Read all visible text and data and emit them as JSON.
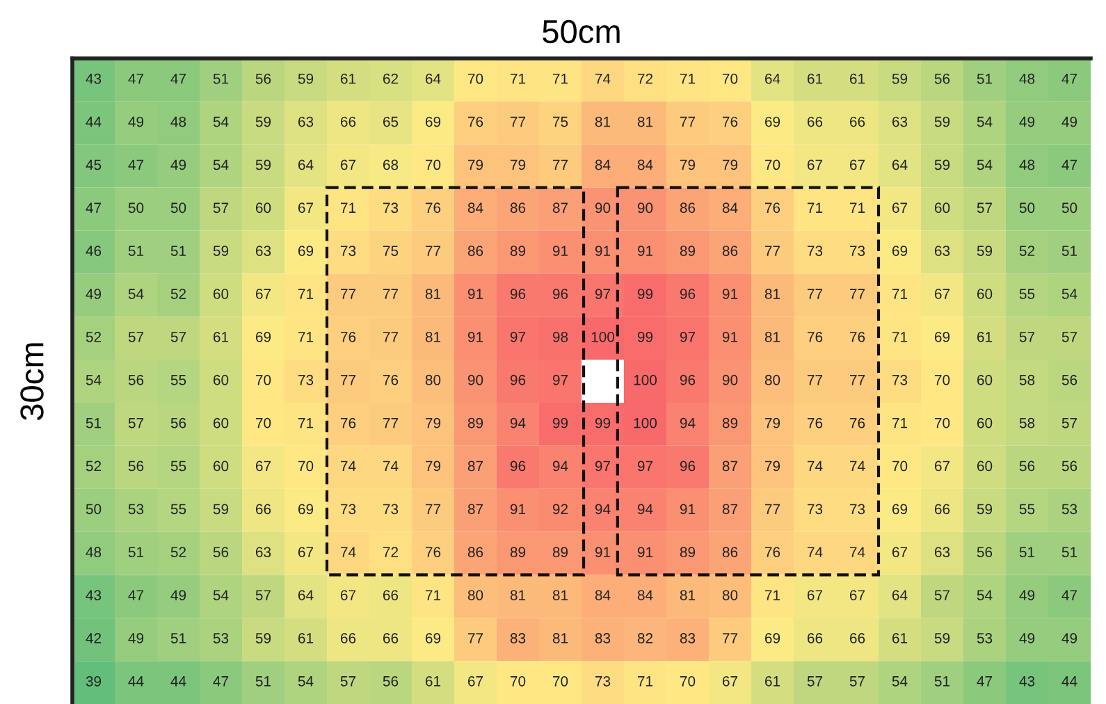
{
  "chart_data": {
    "type": "heatmap",
    "title": "50cm",
    "ylabel": "30cm",
    "data_labels": true,
    "categories": [
      null,
      null,
      null,
      null,
      null,
      null,
      null,
      null,
      null,
      null,
      null,
      null,
      null,
      null,
      null,
      null,
      null,
      null,
      null,
      null,
      null,
      null,
      null,
      null
    ],
    "y_categories": [
      null,
      null,
      null,
      null,
      null,
      null,
      null,
      null,
      null,
      null,
      null,
      null,
      null,
      null,
      null
    ],
    "cells": [
      [
        43,
        47,
        47,
        51,
        56,
        59,
        61,
        62,
        64,
        70,
        71,
        71,
        74,
        72,
        71,
        70,
        64,
        61,
        61,
        59,
        56,
        51,
        48,
        47
      ],
      [
        44,
        49,
        48,
        54,
        59,
        63,
        66,
        65,
        69,
        76,
        77,
        75,
        81,
        81,
        77,
        76,
        69,
        66,
        66,
        63,
        59,
        54,
        49,
        49
      ],
      [
        45,
        47,
        49,
        54,
        59,
        64,
        67,
        68,
        70,
        79,
        79,
        77,
        84,
        84,
        79,
        79,
        70,
        67,
        67,
        64,
        59,
        54,
        48,
        47
      ],
      [
        47,
        50,
        50,
        57,
        60,
        67,
        71,
        73,
        76,
        84,
        86,
        87,
        90,
        90,
        86,
        84,
        76,
        71,
        71,
        67,
        60,
        57,
        50,
        50
      ],
      [
        46,
        51,
        51,
        59,
        63,
        69,
        73,
        75,
        77,
        86,
        89,
        91,
        91,
        91,
        89,
        86,
        77,
        73,
        73,
        69,
        63,
        59,
        52,
        51
      ],
      [
        49,
        54,
        52,
        60,
        67,
        71,
        77,
        77,
        81,
        91,
        96,
        96,
        97,
        99,
        96,
        91,
        81,
        77,
        77,
        71,
        67,
        60,
        55,
        54
      ],
      [
        52,
        57,
        57,
        61,
        69,
        71,
        76,
        77,
        81,
        91,
        97,
        98,
        100,
        99,
        97,
        91,
        81,
        76,
        76,
        71,
        69,
        61,
        57,
        57
      ],
      [
        54,
        56,
        55,
        60,
        70,
        73,
        77,
        76,
        80,
        90,
        96,
        97,
        null,
        100,
        96,
        90,
        80,
        77,
        77,
        73,
        70,
        60,
        58,
        56
      ],
      [
        51,
        57,
        56,
        60,
        70,
        71,
        76,
        77,
        79,
        89,
        94,
        99,
        99,
        100,
        94,
        89,
        79,
        76,
        76,
        71,
        70,
        60,
        58,
        57
      ],
      [
        52,
        56,
        55,
        60,
        67,
        70,
        74,
        74,
        79,
        87,
        96,
        94,
        97,
        97,
        96,
        87,
        79,
        74,
        74,
        70,
        67,
        60,
        56,
        56
      ],
      [
        50,
        53,
        55,
        59,
        66,
        69,
        73,
        73,
        77,
        87,
        91,
        92,
        94,
        94,
        91,
        87,
        77,
        73,
        73,
        69,
        66,
        59,
        55,
        53
      ],
      [
        48,
        51,
        52,
        56,
        63,
        67,
        74,
        72,
        76,
        86,
        89,
        89,
        91,
        91,
        89,
        86,
        76,
        74,
        74,
        67,
        63,
        56,
        51,
        51
      ],
      [
        43,
        47,
        49,
        54,
        57,
        64,
        67,
        66,
        71,
        80,
        81,
        81,
        84,
        84,
        81,
        80,
        71,
        67,
        67,
        64,
        57,
        54,
        49,
        47
      ],
      [
        42,
        49,
        51,
        53,
        59,
        61,
        66,
        66,
        69,
        77,
        83,
        81,
        83,
        82,
        83,
        77,
        69,
        66,
        66,
        61,
        59,
        53,
        49,
        49
      ],
      [
        39,
        44,
        44,
        47,
        51,
        54,
        57,
        56,
        61,
        67,
        70,
        70,
        73,
        71,
        70,
        67,
        61,
        57,
        57,
        54,
        51,
        47,
        43,
        44
      ]
    ]
  }
}
